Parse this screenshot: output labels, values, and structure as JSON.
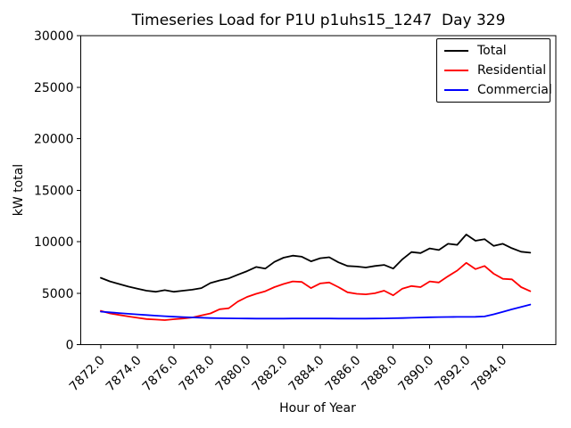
{
  "chart_data": {
    "type": "line",
    "title": "Timeseries Load for P1U p1uhs15_1247  Day 329",
    "xlabel": "Hour of Year",
    "ylabel": "kW total",
    "xlim": [
      7870.9,
      7896.9
    ],
    "ylim": [
      0,
      30000
    ],
    "grid": false,
    "legend_position": "upper right",
    "xticks": {
      "values": [
        7872,
        7874,
        7876,
        7878,
        7880,
        7882,
        7884,
        7886,
        7888,
        7890,
        7892,
        7894
      ],
      "labels": [
        "7872.0",
        "7874.0",
        "7876.0",
        "7878.0",
        "7880.0",
        "7882.0",
        "7884.0",
        "7886.0",
        "7888.0",
        "7890.0",
        "7892.0",
        "7894.0"
      ]
    },
    "yticks": {
      "values": [
        0,
        5000,
        10000,
        15000,
        20000,
        25000,
        30000
      ],
      "labels": [
        "0",
        "5000",
        "10000",
        "15000",
        "20000",
        "25000",
        "30000"
      ]
    },
    "x": [
      7872.0,
      7872.5,
      7873.0,
      7873.5,
      7874.0,
      7874.5,
      7875.0,
      7875.5,
      7876.0,
      7876.5,
      7877.0,
      7877.5,
      7878.0,
      7878.5,
      7879.0,
      7879.5,
      7880.0,
      7880.5,
      7881.0,
      7881.5,
      7882.0,
      7882.5,
      7883.0,
      7883.5,
      7884.0,
      7884.5,
      7885.0,
      7885.5,
      7886.0,
      7886.5,
      7887.0,
      7887.5,
      7888.0,
      7888.5,
      7889.0,
      7889.5,
      7890.0,
      7890.5,
      7891.0,
      7891.5,
      7892.0,
      7892.5,
      7893.0,
      7893.5,
      7894.0,
      7894.5,
      7895.0,
      7895.5
    ],
    "series": [
      {
        "name": "Total",
        "color": "#000000",
        "values": [
          6500,
          6150,
          5900,
          5650,
          5450,
          5250,
          5150,
          5300,
          5150,
          5250,
          5350,
          5500,
          6000,
          6250,
          6450,
          6800,
          7150,
          7550,
          7400,
          8050,
          8450,
          8650,
          8550,
          8100,
          8400,
          8500,
          8000,
          7650,
          7600,
          7500,
          7650,
          7750,
          7400,
          8300,
          9000,
          8900,
          9350,
          9200,
          9800,
          9700,
          10700,
          10100,
          10250,
          9600,
          9800,
          9370,
          9030,
          8940
        ]
      },
      {
        "name": "Residential",
        "color": "#ff0000",
        "values": [
          3300,
          3050,
          2900,
          2750,
          2620,
          2500,
          2450,
          2400,
          2480,
          2550,
          2650,
          2850,
          3050,
          3450,
          3550,
          4200,
          4650,
          4950,
          5200,
          5600,
          5900,
          6150,
          6100,
          5500,
          5950,
          6050,
          5600,
          5100,
          4950,
          4900,
          5000,
          5250,
          4800,
          5450,
          5700,
          5600,
          6150,
          6050,
          6650,
          7200,
          7950,
          7350,
          7650,
          6900,
          6400,
          6350,
          5600,
          5200
        ]
      },
      {
        "name": "Commercial",
        "color": "#0000ff",
        "values": [
          3220,
          3150,
          3080,
          3010,
          2950,
          2890,
          2830,
          2780,
          2730,
          2690,
          2660,
          2630,
          2600,
          2580,
          2570,
          2560,
          2550,
          2545,
          2540,
          2540,
          2545,
          2550,
          2555,
          2555,
          2555,
          2550,
          2545,
          2540,
          2540,
          2545,
          2550,
          2560,
          2580,
          2600,
          2620,
          2650,
          2670,
          2690,
          2700,
          2705,
          2710,
          2715,
          2750,
          2960,
          3200,
          3440,
          3670,
          3900
        ]
      }
    ]
  }
}
